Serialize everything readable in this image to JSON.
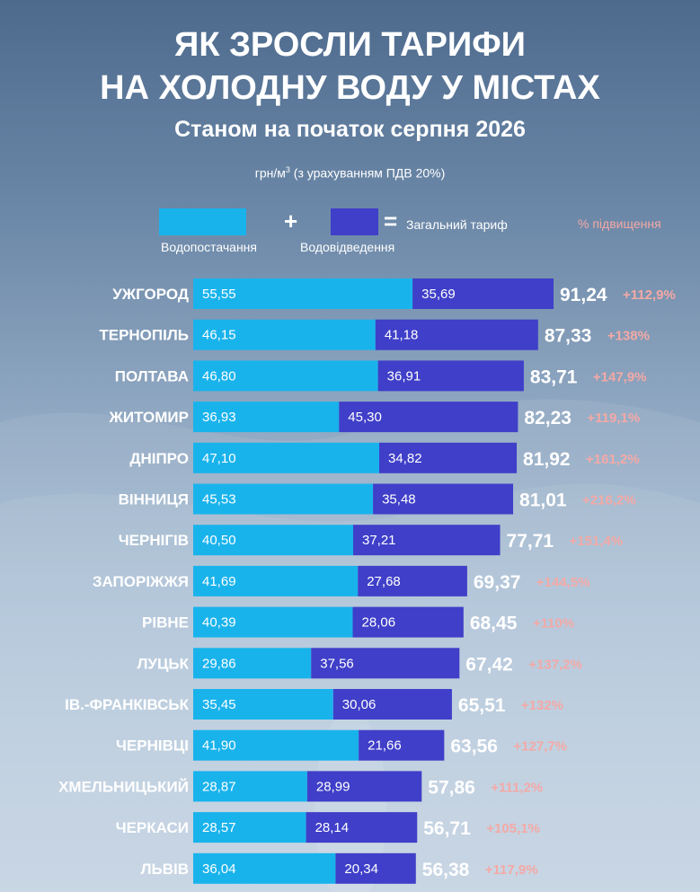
{
  "header": {
    "title_line1": "ЯК ЗРОСЛИ ТАРИФИ",
    "title_line2": "НА ХОЛОДНУ ВОДУ У МІСТАХ",
    "subtitle": "Станом на початок серпня 2026",
    "unit_prefix": "грн/м",
    "unit_sup": "3",
    "unit_suffix": " (з урахуванням ПДВ 20%)"
  },
  "legend": {
    "supply": "Водопостачання",
    "plus": "+",
    "drainage": "Водовідведення",
    "equals": "=",
    "total": "Загальний тариф",
    "increase": "% підвищення"
  },
  "colors": {
    "supply": "#19b3ec",
    "drainage": "#3f3fc9",
    "increase_text": "#f4a9a6"
  },
  "chart_data": {
    "type": "bar",
    "orientation": "horizontal",
    "stacked": true,
    "categories": [
      "УЖГОРОД",
      "ТЕРНОПІЛЬ",
      "ПОЛТАВА",
      "ЖИТОМИР",
      "ДНІПРО",
      "ВІННИЦЯ",
      "ЧЕРНІГІВ",
      "ЗАПОРІЖЖЯ",
      "РІВНЕ",
      "ЛУЦЬК",
      "ІВ.-ФРАНКІВСЬК",
      "ЧЕРНІВЦІ",
      "ХМЕЛЬНИЦЬКИЙ",
      "ЧЕРКАСИ",
      "ЛЬВІВ"
    ],
    "series": [
      {
        "name": "Водопостачання",
        "values": [
          55.55,
          46.15,
          46.8,
          36.93,
          47.1,
          45.53,
          40.5,
          41.69,
          40.39,
          29.86,
          35.45,
          41.9,
          28.87,
          28.57,
          36.04
        ],
        "labels": [
          "55,55",
          "46,15",
          "46,80",
          "36,93",
          "47,10",
          "45,53",
          "40,50",
          "41,69",
          "40,39",
          "29,86",
          "35,45",
          "41,90",
          "28,87",
          "28,57",
          "36,04"
        ]
      },
      {
        "name": "Водовідведення",
        "values": [
          35.69,
          41.18,
          36.91,
          45.3,
          34.82,
          35.48,
          37.21,
          27.68,
          28.06,
          37.56,
          30.06,
          21.66,
          28.99,
          28.14,
          20.34
        ],
        "labels": [
          "35,69",
          "41,18",
          "36,91",
          "45,30",
          "34,82",
          "35,48",
          "37,21",
          "27,68",
          "28,06",
          "37,56",
          "30,06",
          "21,66",
          "28,99",
          "28,14",
          "20,34"
        ]
      }
    ],
    "totals": [
      "91,24",
      "87,33",
      "83,71",
      "82,23",
      "81,92",
      "81,01",
      "77,71",
      "69,37",
      "68,45",
      "67,42",
      "65,51",
      "63,56",
      "57,86",
      "56,71",
      "56,38"
    ],
    "increase": [
      "+112,9%",
      "+138%",
      "+147,9%",
      "+119,1%",
      "+161,2%",
      "+216,2%",
      "+151,4%",
      "+144,5%",
      "+110%",
      "+137,2%",
      "+132%",
      "+127,7%",
      "+111,2%",
      "+105,1%",
      "+117,9%"
    ],
    "xlim": [
      0,
      91.24
    ],
    "grid": false,
    "legend_position": "top"
  }
}
